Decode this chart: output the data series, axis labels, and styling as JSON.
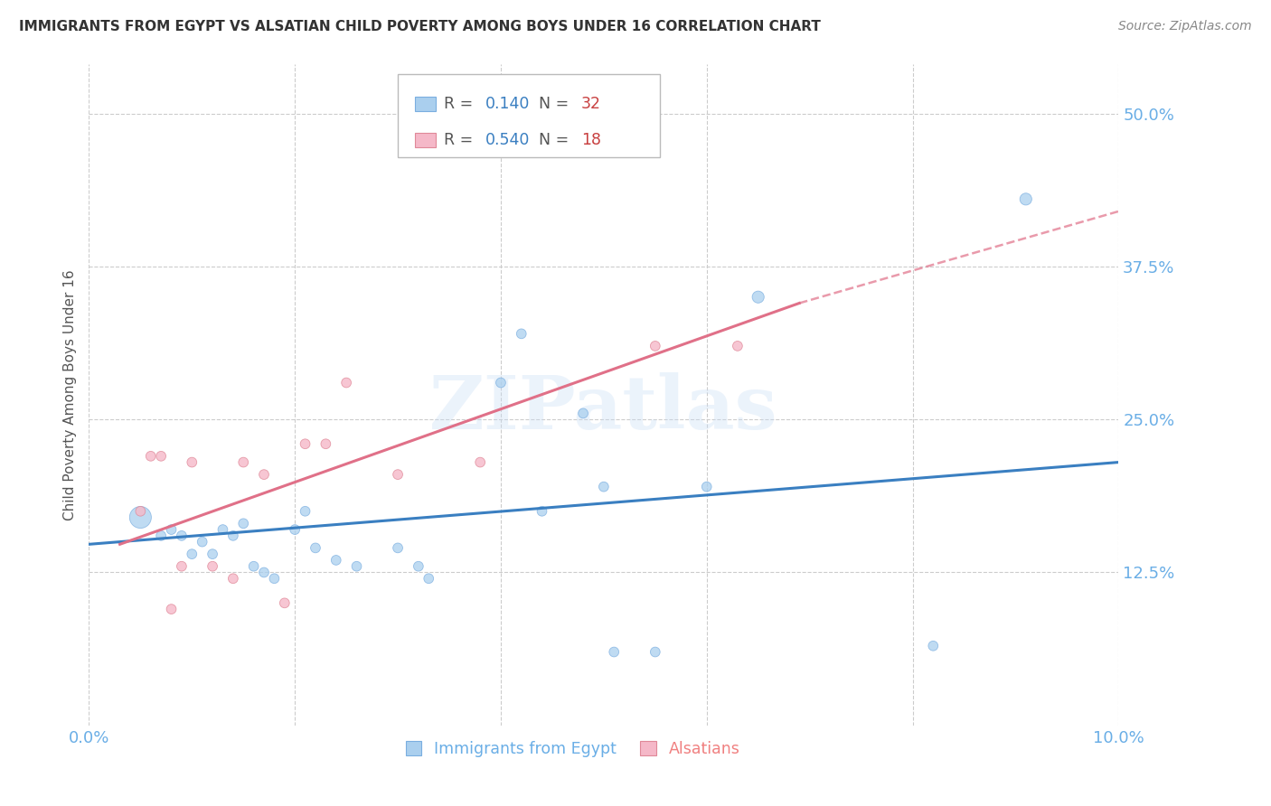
{
  "title": "IMMIGRANTS FROM EGYPT VS ALSATIAN CHILD POVERTY AMONG BOYS UNDER 16 CORRELATION CHART",
  "source": "Source: ZipAtlas.com",
  "ylabel": "Child Poverty Among Boys Under 16",
  "xlim": [
    0.0,
    0.1
  ],
  "ylim": [
    0.0,
    0.54
  ],
  "watermark": "ZIPatlas",
  "legend_entries": [
    {
      "R_val": "0.140",
      "N_val": "32",
      "color": "#aacfee",
      "edgecolor": "#7aaee0"
    },
    {
      "R_val": "0.540",
      "N_val": "18",
      "color": "#f5b8c8",
      "edgecolor": "#e08898"
    }
  ],
  "blue_scatter": {
    "x": [
      0.005,
      0.007,
      0.008,
      0.009,
      0.01,
      0.011,
      0.012,
      0.013,
      0.014,
      0.015,
      0.016,
      0.017,
      0.018,
      0.02,
      0.021,
      0.022,
      0.024,
      0.026,
      0.03,
      0.032,
      0.033,
      0.04,
      0.042,
      0.044,
      0.048,
      0.05,
      0.051,
      0.055,
      0.06,
      0.065,
      0.082,
      0.091
    ],
    "y": [
      0.17,
      0.155,
      0.16,
      0.155,
      0.14,
      0.15,
      0.14,
      0.16,
      0.155,
      0.165,
      0.13,
      0.125,
      0.12,
      0.16,
      0.175,
      0.145,
      0.135,
      0.13,
      0.145,
      0.13,
      0.12,
      0.28,
      0.32,
      0.175,
      0.255,
      0.195,
      0.06,
      0.06,
      0.195,
      0.35,
      0.065,
      0.43
    ],
    "sizes": [
      300,
      60,
      60,
      60,
      60,
      60,
      60,
      60,
      60,
      60,
      60,
      60,
      60,
      60,
      60,
      60,
      60,
      60,
      60,
      60,
      60,
      60,
      60,
      60,
      60,
      60,
      60,
      60,
      60,
      90,
      60,
      90
    ],
    "color": "#aacfee",
    "edgecolor": "#7aaee0",
    "alpha": 0.75
  },
  "pink_scatter": {
    "x": [
      0.005,
      0.006,
      0.007,
      0.008,
      0.009,
      0.01,
      0.012,
      0.014,
      0.015,
      0.017,
      0.019,
      0.021,
      0.023,
      0.025,
      0.03,
      0.038,
      0.055,
      0.063
    ],
    "y": [
      0.175,
      0.22,
      0.22,
      0.095,
      0.13,
      0.215,
      0.13,
      0.12,
      0.215,
      0.205,
      0.1,
      0.23,
      0.23,
      0.28,
      0.205,
      0.215,
      0.31,
      0.31
    ],
    "sizes": [
      60,
      60,
      60,
      60,
      60,
      60,
      60,
      60,
      60,
      60,
      60,
      60,
      60,
      60,
      60,
      60,
      60,
      60
    ],
    "color": "#f5b8c8",
    "edgecolor": "#e08898",
    "alpha": 0.8
  },
  "blue_line": {
    "x": [
      0.0,
      0.1
    ],
    "y": [
      0.148,
      0.215
    ],
    "color": "#3a7fc1",
    "linewidth": 2.2
  },
  "pink_line_solid": {
    "x": [
      0.003,
      0.069
    ],
    "y": [
      0.148,
      0.345
    ],
    "color": "#e07088",
    "linewidth": 2.2,
    "linestyle": "-"
  },
  "pink_line_dashed": {
    "x": [
      0.069,
      0.1
    ],
    "y": [
      0.345,
      0.42
    ],
    "color": "#e07088",
    "linewidth": 1.8,
    "linestyle": "--"
  },
  "yticks": [
    0.125,
    0.25,
    0.375,
    0.5
  ],
  "ytick_labels": [
    "12.5%",
    "25.0%",
    "37.5%",
    "50.0%"
  ],
  "xticks": [
    0.0,
    0.1
  ],
  "xtick_labels": [
    "0.0%",
    "10.0%"
  ],
  "grid_color": "#cccccc",
  "background_color": "#ffffff",
  "title_color": "#333333",
  "axis_label_color": "#555555",
  "tick_label_color": "#6aaee6",
  "watermark_color": "#c8ddf5",
  "watermark_alpha": 0.35
}
